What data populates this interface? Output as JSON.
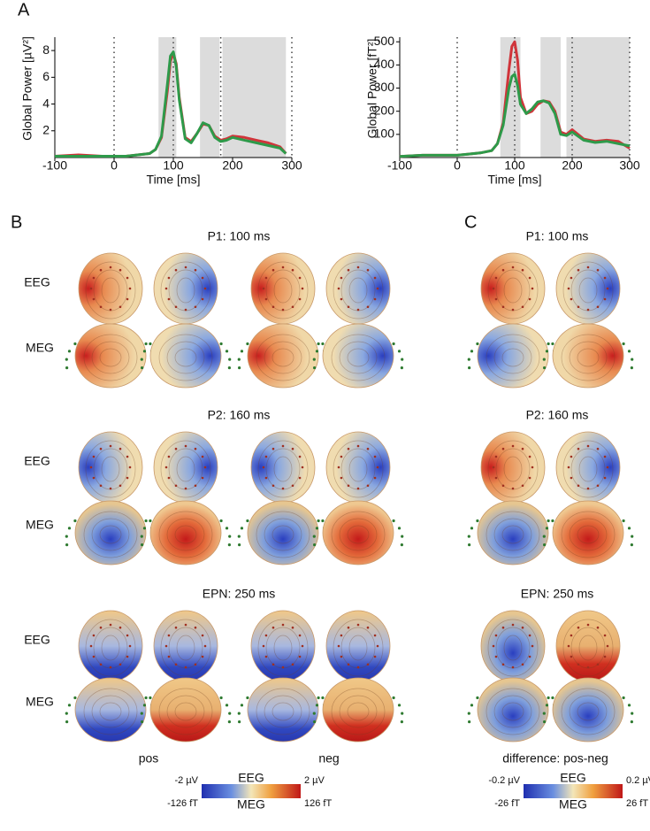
{
  "chart_data": [
    {
      "type": "line",
      "xlabel": "Time [ms]",
      "ylabel": "Global Power [µV²]",
      "x": [
        -100,
        -60,
        -20,
        0,
        20,
        40,
        60,
        70,
        80,
        90,
        95,
        100,
        105,
        110,
        120,
        130,
        140,
        150,
        160,
        170,
        180,
        190,
        200,
        220,
        240,
        260,
        280,
        290
      ],
      "series": [
        {
          "name": "pos",
          "color": "#d0343a",
          "values": [
            0.1,
            0.2,
            0.1,
            0.1,
            0.1,
            0.2,
            0.3,
            0.6,
            1.5,
            5,
            7.2,
            7.8,
            7,
            4.5,
            1.5,
            1.2,
            1.8,
            2.5,
            2.4,
            1.6,
            1.3,
            1.4,
            1.6,
            1.5,
            1.3,
            1.1,
            0.8,
            0.3
          ]
        },
        {
          "name": "neg",
          "color": "#2e9a4a",
          "values": [
            0.1,
            0.1,
            0.1,
            0.1,
            0.1,
            0.2,
            0.3,
            0.6,
            1.6,
            5.5,
            7.6,
            7.9,
            6.8,
            4.3,
            1.4,
            1.1,
            1.8,
            2.6,
            2.4,
            1.5,
            1.2,
            1.3,
            1.5,
            1.3,
            1.1,
            0.9,
            0.7,
            0.3
          ]
        }
      ],
      "xlim": [
        -100,
        300
      ],
      "xticks": [
        -100,
        0,
        100,
        200,
        300
      ],
      "ylim": [
        0,
        9
      ],
      "yticks": [
        2,
        4,
        6,
        8
      ],
      "shaded": [
        [
          75,
          105
        ],
        [
          145,
          178
        ],
        [
          183,
          290
        ]
      ],
      "vlines": [
        0,
        100,
        180,
        300
      ]
    },
    {
      "type": "line",
      "xlabel": "Time [ms]",
      "ylabel": "Global Power [fT²]",
      "x": [
        -100,
        -60,
        -20,
        0,
        20,
        40,
        60,
        70,
        80,
        90,
        95,
        100,
        105,
        110,
        120,
        130,
        140,
        150,
        160,
        170,
        180,
        190,
        200,
        220,
        240,
        260,
        280,
        300
      ],
      "series": [
        {
          "name": "pos",
          "color": "#d0343a",
          "values": [
            5,
            10,
            10,
            10,
            15,
            20,
            30,
            60,
            150,
            380,
            480,
            500,
            420,
            260,
            190,
            200,
            230,
            245,
            240,
            200,
            110,
            100,
            120,
            80,
            70,
            75,
            70,
            40
          ]
        },
        {
          "name": "neg",
          "color": "#2e9a4a",
          "values": [
            5,
            10,
            10,
            10,
            15,
            20,
            30,
            60,
            140,
            300,
            350,
            360,
            310,
            230,
            190,
            210,
            240,
            245,
            235,
            190,
            100,
            95,
            110,
            75,
            65,
            70,
            60,
            50
          ]
        }
      ],
      "xlim": [
        -100,
        300
      ],
      "xticks": [
        -100,
        0,
        100,
        200,
        300
      ],
      "ylim": [
        0,
        520
      ],
      "yticks": [
        100,
        200,
        300,
        400,
        500
      ],
      "shaded": [
        [
          75,
          110
        ],
        [
          145,
          180
        ],
        [
          190,
          300
        ]
      ],
      "vlines": [
        0,
        100,
        200,
        300
      ]
    }
  ],
  "figure": {
    "panels": [
      "A",
      "B",
      "C"
    ],
    "b_titles": [
      "P1: 100 ms",
      "P2: 160 ms",
      "EPN: 250 ms"
    ],
    "c_titles": [
      "P1: 100 ms",
      "P2: 160 ms",
      "EPN: 250 ms"
    ],
    "row_labels": [
      "EEG",
      "MEG",
      "EEG",
      "MEG",
      "EEG",
      "MEG"
    ],
    "conditions": [
      "pos",
      "neg"
    ],
    "difference": "difference: pos-neg",
    "colorbar_b": {
      "eeg_min": "-2 µV",
      "eeg_max": "2 µV",
      "eeg": "EEG",
      "meg": "MEG",
      "meg_min": "-126 fT",
      "meg_max": "126 fT"
    },
    "colorbar_c": {
      "eeg_min": "-0.2 µV",
      "eeg_max": "0.2 µV",
      "eeg": "EEG",
      "meg": "MEG",
      "meg_min": "-26 fT",
      "meg_max": "26 fT"
    }
  }
}
